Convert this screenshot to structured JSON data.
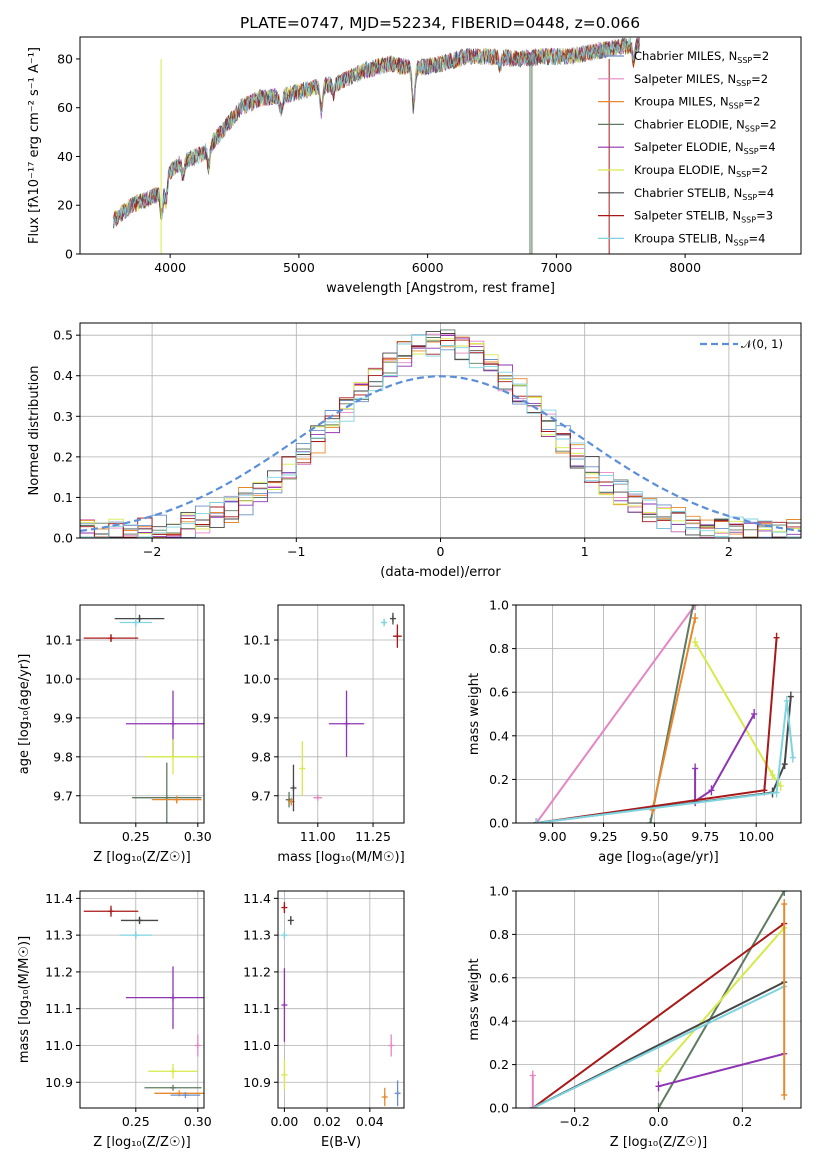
{
  "figure": {
    "title": "PLATE=0747, MJD=52234, FIBERID=0448, z=0.066"
  },
  "chart_data": [
    {
      "id": "spectrum",
      "type": "line",
      "xlabel": "wavelength [Angstrom, rest frame]",
      "ylabel": "Flux [fλ10⁻¹⁷ erg cm⁻² s⁻¹ A⁻¹]",
      "xlim": [
        3300,
        8900
      ],
      "ylim": [
        0,
        89
      ],
      "xticks": [
        4000,
        5000,
        6000,
        7000,
        8000
      ],
      "yticks": [
        0,
        20,
        40,
        60,
        80
      ],
      "legend_position": "right",
      "series": [
        {
          "name": "Chabrier MILES, N_SSP=2",
          "label": "Chabrier MILES, N",
          "sub": "SSP",
          "tail": "=2",
          "color": "#6b8fc7"
        },
        {
          "name": "Salpeter MILES, N_SSP=2",
          "label": "Salpeter MILES, N",
          "sub": "SSP",
          "tail": "=2",
          "color": "#e586c3"
        },
        {
          "name": "Kroupa MILES, N_SSP=2",
          "label": "Kroupa MILES, N",
          "sub": "SSP",
          "tail": "=2",
          "color": "#e8882b"
        },
        {
          "name": "Chabrier ELODIE, N_SSP=2",
          "label": "Chabrier ELODIE, N",
          "sub": "SSP",
          "tail": "=2",
          "color": "#5f7a61"
        },
        {
          "name": "Salpeter ELODIE, N_SSP=4",
          "label": "Salpeter ELODIE, N",
          "sub": "SSP",
          "tail": "=4",
          "color": "#8e35b3"
        },
        {
          "name": "Kroupa ELODIE, N_SSP=2",
          "label": "Kroupa ELODIE, N",
          "sub": "SSP",
          "tail": "=2",
          "color": "#d6ea4a"
        },
        {
          "name": "Chabrier STELIB, N_SSP=4",
          "label": "Chabrier STELIB, N",
          "sub": "SSP",
          "tail": "=4",
          "color": "#464646"
        },
        {
          "name": "Salpeter STELIB, N_SSP=3",
          "label": "Salpeter STELIB, N",
          "sub": "SSP",
          "tail": "=3",
          "color": "#a81818"
        },
        {
          "name": "Kroupa STELIB, N_SSP=4",
          "label": "Kroupa STELIB, N",
          "sub": "SSP",
          "tail": "=4",
          "color": "#7fd3df"
        }
      ],
      "envelope": {
        "x": [
          3560,
          3700,
          3800,
          3930,
          4000,
          4100,
          4250,
          4400,
          4550,
          4700,
          4900,
          5100,
          5300,
          5500,
          5700,
          5900,
          6100,
          6300,
          6500,
          6700,
          6900,
          7100,
          7300,
          7500,
          7650
        ],
        "y": [
          14,
          20,
          22,
          25,
          34,
          38,
          41,
          50,
          60,
          64,
          65,
          68,
          70,
          75,
          78,
          76,
          78,
          81,
          81,
          80,
          81,
          81,
          83,
          85,
          86
        ]
      }
    },
    {
      "id": "residuals",
      "type": "line",
      "xlabel": "(data-model)/error",
      "ylabel": "Normed distribution",
      "xlim": [
        -2.5,
        2.5
      ],
      "ylim": [
        0,
        0.53
      ],
      "xticks": [
        -2,
        -1,
        0,
        1,
        2
      ],
      "yticks": [
        0.0,
        0.1,
        0.2,
        0.3,
        0.4,
        0.5
      ],
      "grid": true,
      "legend_position": "top-right",
      "reference_label": "𝒩(0, 1)",
      "reference_color": "#5b8fd8"
    },
    {
      "id": "age-vs-Z",
      "type": "scatter",
      "xlabel": "Z [log₁₀(Z/Z☉)]",
      "ylabel": "age  [log₁₀(age/yr)]",
      "xlim": [
        0.205,
        0.305
      ],
      "ylim": [
        9.63,
        10.19
      ],
      "xticks": [
        0.25,
        0.3
      ],
      "yticks": [
        9.7,
        9.8,
        9.9,
        10.0,
        10.1
      ],
      "grid": true,
      "points": [
        {
          "series": 3,
          "x": 0.275,
          "y": 9.695,
          "xerr": 0.028,
          "yerr": 0.09
        },
        {
          "series": 2,
          "x": 0.283,
          "y": 9.69,
          "xerr": 0.02,
          "yerr": 0.01
        },
        {
          "series": 4,
          "x": 0.28,
          "y": 9.885,
          "xerr": 0.038,
          "yerr": 0.085
        },
        {
          "series": 5,
          "x": 0.28,
          "y": 9.8,
          "xerr": 0.022,
          "yerr": 0.045
        },
        {
          "series": 6,
          "x": 0.253,
          "y": 10.155,
          "xerr": 0.02,
          "yerr": 0.01
        },
        {
          "series": 7,
          "x": 0.23,
          "y": 10.105,
          "xerr": 0.022,
          "yerr": 0.01
        },
        {
          "series": 8,
          "x": 0.25,
          "y": 10.145,
          "xerr": 0.013,
          "yerr": 0.01
        }
      ]
    },
    {
      "id": "age-vs-mass",
      "type": "scatter",
      "xlabel": "mass [log₁₀(M/M☉)]",
      "ylabel": "",
      "xlim": [
        10.82,
        11.39
      ],
      "ylim": [
        9.63,
        10.19
      ],
      "xticks": [
        11.0,
        11.25
      ],
      "yticks": [
        9.7,
        9.8,
        9.9,
        10.0,
        10.1
      ],
      "grid": true,
      "points": [
        {
          "series": 3,
          "x": 10.87,
          "y": 9.69,
          "xerr": 0.015,
          "yerr": 0.02
        },
        {
          "series": 2,
          "x": 10.88,
          "y": 9.685,
          "xerr": 0.015,
          "yerr": 0.01
        },
        {
          "series": 6,
          "x": 10.89,
          "y": 9.72,
          "xerr": 0.0,
          "yerr": 0.06
        },
        {
          "series": 5,
          "x": 10.93,
          "y": 9.77,
          "xerr": 0.0,
          "yerr": 0.07
        },
        {
          "series": 1,
          "x": 11.0,
          "y": 9.695,
          "xerr": 0.02,
          "yerr": 0.0
        },
        {
          "series": 4,
          "x": 11.13,
          "y": 9.885,
          "xerr": 0.08,
          "yerr": 0.085
        },
        {
          "series": 8,
          "x": 11.3,
          "y": 10.145,
          "xerr": 0.013,
          "yerr": 0.01
        },
        {
          "series": 6,
          "x": 11.34,
          "y": 10.155,
          "xerr": 0.0,
          "yerr": 0.015
        },
        {
          "series": 7,
          "x": 11.36,
          "y": 10.11,
          "xerr": 0.02,
          "yerr": 0.03
        }
      ]
    },
    {
      "id": "weight-vs-age",
      "type": "line",
      "xlabel": "age  [log₁₀(age/yr)]",
      "ylabel": "mass weight",
      "xlim": [
        8.82,
        10.22
      ],
      "ylim": [
        0.0,
        1.0
      ],
      "xticks": [
        9.0,
        9.25,
        9.5,
        9.75,
        10.0
      ],
      "yticks": [
        0.0,
        0.2,
        0.4,
        0.6,
        0.8,
        1.0
      ],
      "grid": true,
      "series": [
        {
          "series": 1,
          "x": [
            8.92,
            9.7
          ],
          "y": [
            0.0,
            1.0
          ]
        },
        {
          "series": 3,
          "x": [
            9.48,
            9.69
          ],
          "y": [
            0.0,
            1.0
          ]
        },
        {
          "series": 2,
          "x": [
            9.49,
            9.7
          ],
          "y": [
            0.06,
            0.94
          ]
        },
        {
          "series": 5,
          "x": [
            9.7,
            10.08,
            10.12
          ],
          "y": [
            0.83,
            0.22,
            0.17
          ]
        },
        {
          "series": 4,
          "x": [
            9.7,
            9.7,
            9.78,
            9.99
          ],
          "y": [
            0.25,
            0.1,
            0.15,
            0.5
          ]
        },
        {
          "series": 7,
          "x": [
            8.92,
            10.04,
            10.1
          ],
          "y": [
            0.0,
            0.15,
            0.85
          ]
        },
        {
          "series": 6,
          "x": [
            8.92,
            10.08,
            10.14,
            10.17
          ],
          "y": [
            0.0,
            0.14,
            0.27,
            0.58
          ]
        },
        {
          "series": 8,
          "x": [
            8.92,
            10.1,
            10.15,
            10.18
          ],
          "y": [
            0.0,
            0.14,
            0.56,
            0.3
          ]
        }
      ]
    },
    {
      "id": "mass-vs-Z",
      "type": "scatter",
      "xlabel": "Z [log₁₀(Z/Z☉)]",
      "ylabel": "mass [log₁₀(M/M☉)]",
      "xlim": [
        0.205,
        0.305
      ],
      "ylim": [
        10.83,
        11.42
      ],
      "xticks": [
        0.25,
        0.3
      ],
      "yticks": [
        10.9,
        11.0,
        11.1,
        11.2,
        11.3,
        11.4
      ],
      "grid": true,
      "points": [
        {
          "series": 7,
          "x": 0.23,
          "y": 11.365,
          "xerr": 0.022,
          "yerr": 0.015
        },
        {
          "series": 6,
          "x": 0.253,
          "y": 11.34,
          "xerr": 0.015,
          "yerr": 0.01
        },
        {
          "series": 8,
          "x": 0.25,
          "y": 11.3,
          "xerr": 0.013,
          "yerr": 0.01
        },
        {
          "series": 4,
          "x": 0.28,
          "y": 11.13,
          "xerr": 0.038,
          "yerr": 0.085
        },
        {
          "series": 1,
          "x": 0.3,
          "y": 11.0,
          "xerr": 0.0,
          "yerr": 0.03
        },
        {
          "series": 5,
          "x": 0.28,
          "y": 10.93,
          "xerr": 0.02,
          "yerr": 0.02
        },
        {
          "series": 3,
          "x": 0.28,
          "y": 10.885,
          "xerr": 0.023,
          "yerr": 0.0
        },
        {
          "series": 2,
          "x": 0.285,
          "y": 10.87,
          "xerr": 0.02,
          "yerr": 0.0
        },
        {
          "series": 0,
          "x": 0.29,
          "y": 10.865,
          "xerr": 0.012,
          "yerr": 0.0
        }
      ]
    },
    {
      "id": "mass-vs-ebv",
      "type": "scatter",
      "xlabel": "E(B-V)",
      "ylabel": "",
      "xlim": [
        -0.003,
        0.056
      ],
      "ylim": [
        10.83,
        11.42
      ],
      "xticks": [
        0.0,
        0.02,
        0.04
      ],
      "yticks": [
        10.9,
        11.0,
        11.1,
        11.2,
        11.3,
        11.4
      ],
      "grid": true,
      "points": [
        {
          "series": 7,
          "x": 0.0,
          "y": 11.375,
          "xerr": 0.0,
          "yerr": 0.015
        },
        {
          "series": 6,
          "x": 0.003,
          "y": 11.34,
          "xerr": 0.0,
          "yerr": 0.012
        },
        {
          "series": 8,
          "x": 0.0,
          "y": 11.3,
          "xerr": 0.0,
          "yerr": 0.01
        },
        {
          "series": 4,
          "x": 0.0,
          "y": 11.11,
          "xerr": 0.0,
          "yerr": 0.1
        },
        {
          "series": 5,
          "x": 0.0,
          "y": 10.92,
          "xerr": 0.0,
          "yerr": 0.04
        },
        {
          "series": 1,
          "x": 0.05,
          "y": 11.0,
          "xerr": 0.0,
          "yerr": 0.03
        },
        {
          "series": 2,
          "x": 0.047,
          "y": 10.86,
          "xerr": 0.0,
          "yerr": 0.025
        },
        {
          "series": 0,
          "x": 0.053,
          "y": 10.87,
          "xerr": 0.0,
          "yerr": 0.035
        }
      ]
    },
    {
      "id": "weight-vs-Z",
      "type": "line",
      "xlabel": "Z [log₁₀(Z/Z☉)]",
      "ylabel": "mass weight",
      "xlim": [
        -0.34,
        0.34
      ],
      "ylim": [
        0.0,
        1.0
      ],
      "xticks": [
        -0.2,
        0.0,
        0.2
      ],
      "yticks": [
        0.0,
        0.2,
        0.4,
        0.6,
        0.8,
        1.0
      ],
      "grid": true,
      "series": [
        {
          "series": 3,
          "x": [
            0.0,
            0.3
          ],
          "y": [
            0.0,
            1.0
          ]
        },
        {
          "series": 7,
          "x": [
            -0.3,
            0.3
          ],
          "y": [
            0.0,
            0.85
          ]
        },
        {
          "series": 5,
          "x": [
            0.0,
            0.3
          ],
          "y": [
            0.17,
            0.83
          ]
        },
        {
          "series": 6,
          "x": [
            -0.3,
            0.3
          ],
          "y": [
            0.0,
            0.58
          ]
        },
        {
          "series": 8,
          "x": [
            -0.3,
            0.3
          ],
          "y": [
            0.0,
            0.56
          ]
        },
        {
          "series": 4,
          "x": [
            0.0,
            0.3
          ],
          "y": [
            0.1,
            0.25
          ]
        },
        {
          "series": 1,
          "x": [
            -0.3,
            -0.3
          ],
          "y": [
            0.0,
            0.15
          ]
        },
        {
          "series": 2,
          "x": [
            0.3,
            0.3
          ],
          "y": [
            0.06,
            0.94
          ]
        }
      ]
    }
  ]
}
